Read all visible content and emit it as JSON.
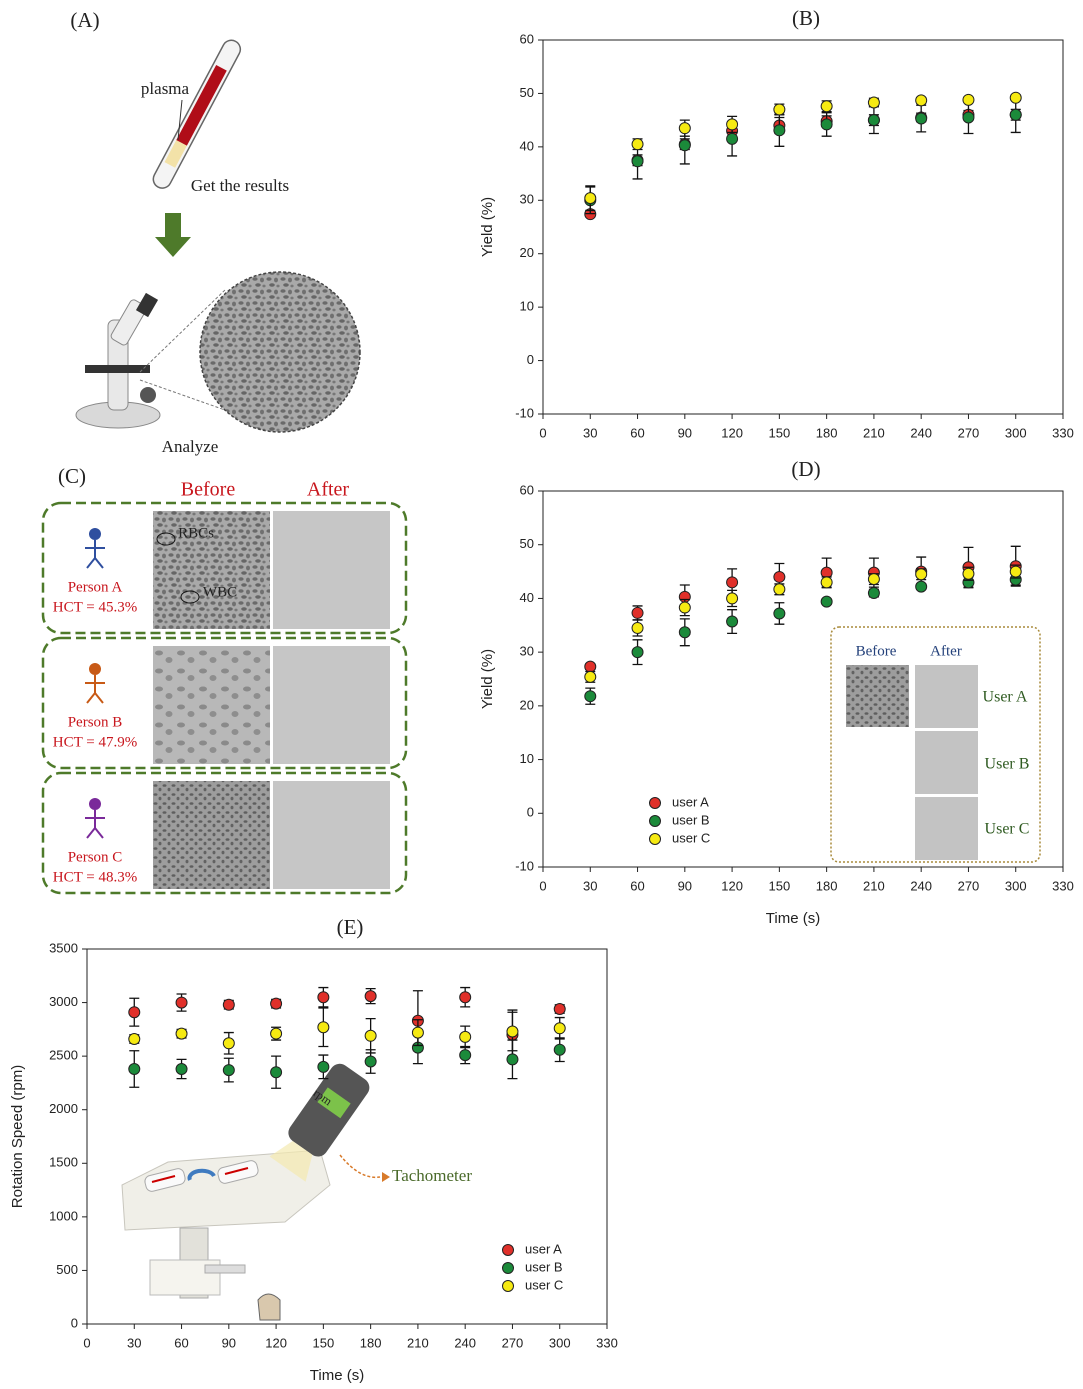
{
  "panel_a": {
    "label": "(A)",
    "plasma": "plasma",
    "result": "Get the results",
    "analyze": "Analyze"
  },
  "panel_c": {
    "label": "(C)",
    "before": "Before",
    "after": "After",
    "rbc": "RBCs",
    "wbc": "WBC",
    "persons": [
      {
        "name": "Person A",
        "hct": "HCT = 45.3%"
      },
      {
        "name": "Person B",
        "hct": "HCT = 47.9%"
      },
      {
        "name": "Person C",
        "hct": "HCT = 48.3%"
      }
    ]
  },
  "inset_d": {
    "before": "Before",
    "after": "After",
    "users": [
      "User A",
      "User B",
      "User C"
    ]
  },
  "inset_e": {
    "meter": "rpm",
    "label": "Tachometer"
  },
  "chart_data": [
    {
      "type": "scatter",
      "title": "(B)",
      "y_label": "Yield (%)",
      "x": [
        30,
        60,
        90,
        120,
        150,
        180,
        210,
        240,
        270,
        300
      ],
      "xlim": [
        0,
        330
      ],
      "xticks": [
        0,
        30,
        60,
        90,
        120,
        150,
        180,
        210,
        240,
        270,
        300,
        330
      ],
      "ylim": [
        -10,
        60
      ],
      "yticks": [
        -10,
        0,
        10,
        20,
        30,
        40,
        50,
        60
      ],
      "series": [
        {
          "color": "#e0302a",
          "values": [
            27.4,
            37.5,
            40.5,
            43,
            44,
            44.8,
            45,
            45.5,
            46,
            46
          ],
          "errors": [
            0.5,
            1,
            1,
            1,
            1.5,
            1,
            1,
            0.8,
            0.8,
            1
          ]
        },
        {
          "color": "#1b8a3a",
          "values": [
            30,
            37.3,
            40.3,
            41.5,
            43.1,
            44.2,
            45,
            45.3,
            45.5,
            46
          ],
          "errors": [
            2.5,
            3.3,
            3.5,
            3.2,
            3,
            2.2,
            2.5,
            2.5,
            3,
            3.3
          ]
        },
        {
          "color": "#f6ea12",
          "values": [
            30.4,
            40.5,
            43.5,
            44.2,
            47,
            47.6,
            48.3,
            48.7,
            48.8,
            49.2
          ],
          "errors": [
            2.3,
            1,
            1.5,
            1.5,
            1,
            1,
            0.8,
            0.5,
            0.5,
            0.5
          ]
        }
      ]
    },
    {
      "type": "scatter",
      "title": "(D)",
      "y_label": "Yield (%)",
      "x_label": "Time (s)",
      "legend": "lower left",
      "x": [
        30,
        60,
        90,
        120,
        150,
        180,
        210,
        240,
        270,
        300
      ],
      "xlim": [
        0,
        330
      ],
      "xticks": [
        0,
        30,
        60,
        90,
        120,
        150,
        180,
        210,
        240,
        270,
        300,
        330
      ],
      "ylim": [
        -10,
        60
      ],
      "yticks": [
        -10,
        0,
        10,
        20,
        30,
        40,
        50,
        60
      ],
      "series": [
        {
          "name": "user A",
          "color": "#e0302a",
          "values": [
            27.3,
            37.3,
            40.3,
            43,
            44,
            44.8,
            44.8,
            45,
            45.8,
            46
          ],
          "errors": [
            0.5,
            1.3,
            2.2,
            2.5,
            2.5,
            2.7,
            2.7,
            2.7,
            3.7,
            3.7
          ]
        },
        {
          "name": "user B",
          "color": "#1b8a3a",
          "values": [
            21.8,
            30,
            33.7,
            35.7,
            37.2,
            39.4,
            41,
            42.2,
            43,
            43.5
          ],
          "errors": [
            1.5,
            2.3,
            2.5,
            2.2,
            2,
            0.5,
            0.7,
            0.5,
            1,
            1
          ]
        },
        {
          "name": "user C",
          "color": "#f6ea12",
          "values": [
            25.4,
            34.5,
            38.3,
            40,
            41.7,
            43,
            43.6,
            44.5,
            44.6,
            45
          ],
          "errors": [
            1,
            1.5,
            1.5,
            1.5,
            1,
            1,
            1,
            1,
            1.2,
            1.2
          ]
        }
      ]
    },
    {
      "type": "scatter",
      "title": "(E)",
      "y_label": "Rotation Speed (rpm)",
      "x_label": "Time (s)",
      "legend": "lower right",
      "x": [
        30,
        60,
        90,
        120,
        150,
        180,
        210,
        240,
        270,
        300
      ],
      "xlim": [
        0,
        330
      ],
      "xticks": [
        0,
        30,
        60,
        90,
        120,
        150,
        180,
        210,
        240,
        270,
        300,
        330
      ],
      "ylim": [
        0,
        3500
      ],
      "yticks": [
        0,
        500,
        1000,
        1500,
        2000,
        2500,
        3000,
        3500
      ],
      "series": [
        {
          "name": "user A",
          "color": "#e0302a",
          "values": [
            2910,
            3000,
            2980,
            2990,
            3050,
            3060,
            2830,
            3050,
            2700,
            2940
          ],
          "errors": [
            130,
            80,
            40,
            40,
            90,
            70,
            280,
            90,
            230,
            40
          ]
        },
        {
          "name": "user B",
          "color": "#1b8a3a",
          "values": [
            2380,
            2380,
            2370,
            2350,
            2400,
            2450,
            2580,
            2510,
            2470,
            2560
          ],
          "errors": [
            170,
            90,
            110,
            150,
            110,
            110,
            150,
            80,
            180,
            110
          ]
        },
        {
          "name": "user C",
          "color": "#f6ea12",
          "values": [
            2660,
            2710,
            2620,
            2710,
            2770,
            2690,
            2720,
            2680,
            2730,
            2760
          ],
          "errors": [
            40,
            40,
            100,
            60,
            180,
            160,
            120,
            100,
            180,
            100
          ]
        }
      ]
    }
  ]
}
